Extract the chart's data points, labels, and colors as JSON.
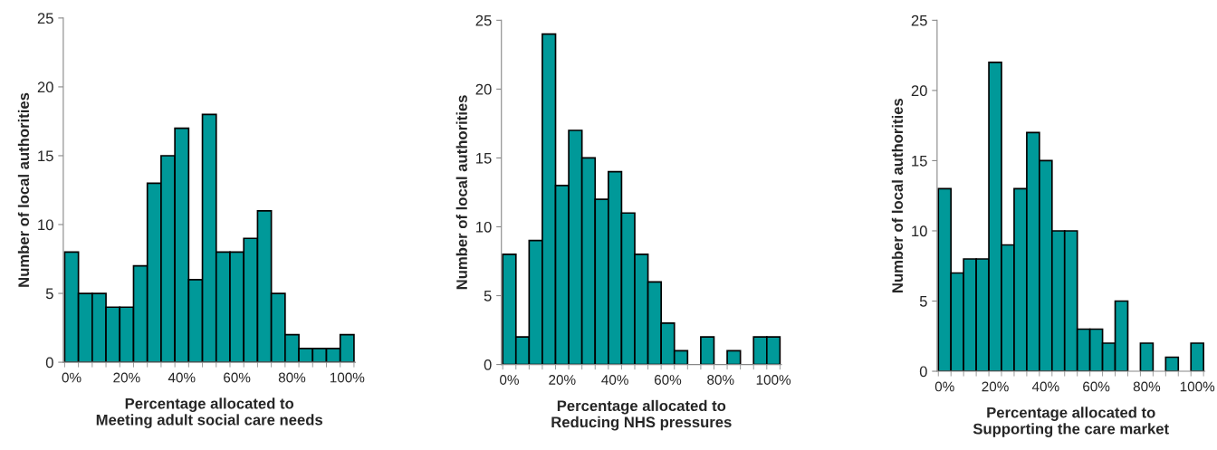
{
  "chart_data": [
    {
      "type": "bar",
      "xlabel": "Percentage allocated to\nMeeting adult social care needs",
      "ylabel": "Number of local authorities",
      "categories": [
        "0%",
        null,
        null,
        null,
        "20%",
        null,
        null,
        null,
        "40%",
        null,
        null,
        null,
        "60%",
        null,
        null,
        null,
        "80%",
        null,
        null,
        null,
        "100%"
      ],
      "values": [
        8,
        5,
        5,
        4,
        4,
        7,
        13,
        15,
        17,
        6,
        18,
        8,
        8,
        9,
        11,
        5,
        2,
        1,
        1,
        1,
        2
      ],
      "color": "#009999",
      "ylim": [
        0,
        25
      ],
      "yticks": [
        0,
        5,
        10,
        15,
        20,
        25
      ],
      "grid": false,
      "legend": false
    },
    {
      "type": "bar",
      "xlabel": "Percentage allocated to\nReducing NHS pressures",
      "ylabel": "Number of local authorities",
      "categories": [
        "0%",
        null,
        null,
        null,
        "20%",
        null,
        null,
        null,
        "40%",
        null,
        null,
        null,
        "60%",
        null,
        null,
        null,
        "80%",
        null,
        null,
        null,
        "100%"
      ],
      "values": [
        8,
        2,
        9,
        24,
        13,
        17,
        15,
        12,
        14,
        11,
        8,
        6,
        3,
        1,
        0,
        2,
        0,
        1,
        0,
        2,
        2
      ],
      "color": "#009999",
      "ylim": [
        0,
        25
      ],
      "yticks": [
        0,
        5,
        10,
        15,
        20,
        25
      ],
      "grid": false,
      "legend": false
    },
    {
      "type": "bar",
      "xlabel": "Percentage allocated to\nSupporting the care market",
      "ylabel": "Number of local authorities",
      "categories": [
        "0%",
        null,
        null,
        null,
        "20%",
        null,
        null,
        null,
        "40%",
        null,
        null,
        null,
        "60%",
        null,
        null,
        null,
        "80%",
        null,
        null,
        null,
        "100%"
      ],
      "values": [
        13,
        7,
        8,
        8,
        22,
        9,
        13,
        17,
        15,
        10,
        10,
        3,
        3,
        2,
        5,
        0,
        2,
        0,
        1,
        0,
        2
      ],
      "color": "#009999",
      "ylim": [
        0,
        25
      ],
      "yticks": [
        0,
        5,
        10,
        15,
        20,
        25
      ],
      "grid": false,
      "legend": false
    }
  ]
}
